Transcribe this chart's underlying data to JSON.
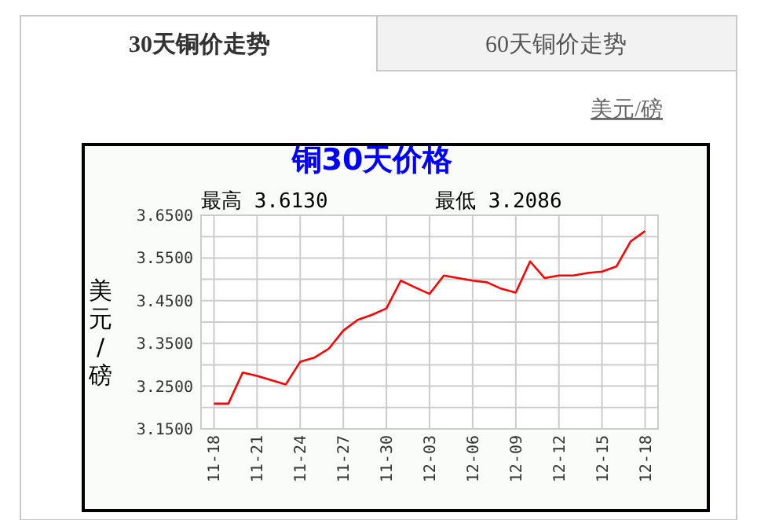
{
  "chart_data": {
    "type": "line",
    "title": "铜30天价格",
    "ylabel": "美元/磅",
    "annotations": [
      "最高 3.6130",
      "最低 3.2086",
      "30天铜价走势",
      "60天铜价走势",
      "美元/磅"
    ],
    "categories": [
      "11-18",
      null,
      null,
      "11-21",
      null,
      null,
      "11-24",
      null,
      null,
      "11-27",
      null,
      null,
      "11-30",
      null,
      null,
      "12-03",
      null,
      null,
      "12-06",
      null,
      null,
      "12-09",
      null,
      null,
      "12-12",
      null,
      null,
      "12-15",
      null,
      null,
      "12-18"
    ],
    "series": [
      {
        "color": "#ff0000",
        "values": [
          3.209,
          3.209,
          3.282,
          3.274,
          3.264,
          3.254,
          3.307,
          3.317,
          3.338,
          3.38,
          3.405,
          3.417,
          3.432,
          3.497,
          3.481,
          3.466,
          3.509,
          3.503,
          3.497,
          3.493,
          3.478,
          3.469,
          3.542,
          3.503,
          3.509,
          3.509,
          3.515,
          3.518,
          3.53,
          3.589,
          3.613
        ]
      }
    ],
    "ylim": [
      3.15,
      3.65
    ],
    "yticks": [
      {
        "value": 3.15,
        "label": "3.1500"
      },
      {
        "value": 3.2,
        "label": null
      },
      {
        "value": 3.25,
        "label": "3.2500"
      },
      {
        "value": 3.3,
        "label": null
      },
      {
        "value": 3.35,
        "label": "3.3500"
      },
      {
        "value": 3.4,
        "label": null
      },
      {
        "value": 3.45,
        "label": "3.4500"
      },
      {
        "value": 3.5,
        "label": null
      },
      {
        "value": 3.55,
        "label": "3.5500"
      },
      {
        "value": 3.6,
        "label": null
      },
      {
        "value": 3.65,
        "label": "3.6500"
      }
    ],
    "grid": true,
    "marker": "none"
  }
}
